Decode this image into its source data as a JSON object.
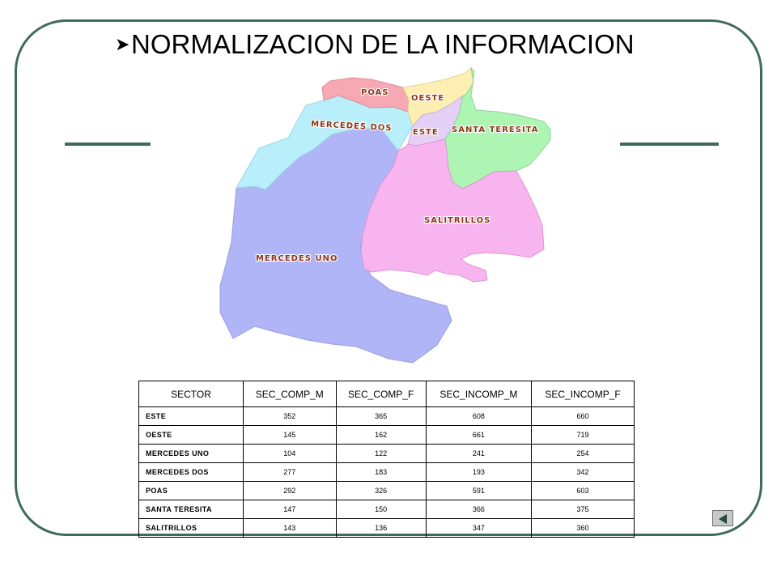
{
  "slide": {
    "title": "NORMALIZACION DE LA INFORMACION",
    "bullet_icon": "arrow-bullet"
  },
  "map": {
    "regions": [
      {
        "label": "POAS",
        "color": "#f6a9b3"
      },
      {
        "label": "OESTE",
        "color": "#fdefb2"
      },
      {
        "label": "MERCEDES DOS",
        "color": "#b8effb"
      },
      {
        "label": "ESTE",
        "color": "#e4cff7"
      },
      {
        "label": "SANTA TERESITA",
        "color": "#aef5b4"
      },
      {
        "label": "SALITRILLOS",
        "color": "#f8b4ee"
      },
      {
        "label": "MERCEDES UNO",
        "color": "#b0b5f7"
      }
    ]
  },
  "table": {
    "headers": [
      "SECTOR",
      "SEC_COMP_M",
      "SEC_COMP_F",
      "SEC_INCOMP_M",
      "SEC_INCOMP_F"
    ],
    "rows": [
      [
        "ESTE",
        "352",
        "365",
        "608",
        "660"
      ],
      [
        "OESTE",
        "145",
        "162",
        "661",
        "719"
      ],
      [
        "MERCEDES UNO",
        "104",
        "122",
        "241",
        "254"
      ],
      [
        "MERCEDES DOS",
        "277",
        "183",
        "193",
        "342"
      ],
      [
        "POAS",
        "292",
        "326",
        "591",
        "603"
      ],
      [
        "SANTA TERESITA",
        "147",
        "150",
        "366",
        "375"
      ],
      [
        "SALITRILLOS",
        "143",
        "136",
        "347",
        "360"
      ]
    ]
  },
  "nav": {
    "back_icon": "back-triangle-icon"
  },
  "colors": {
    "frame": "#3f6b5e",
    "text_label": "#8b3a1c"
  }
}
